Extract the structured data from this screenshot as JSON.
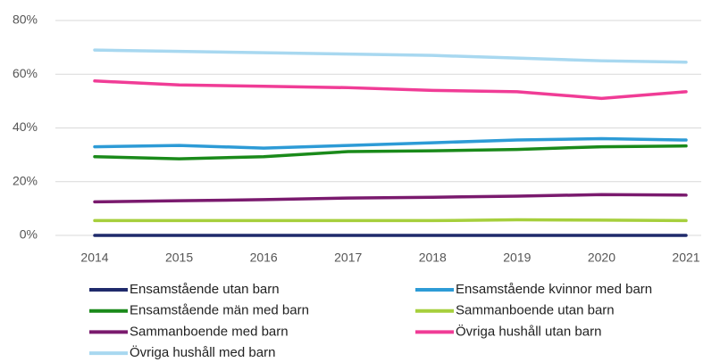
{
  "chart_data": {
    "type": "line",
    "categories": [
      "2014",
      "2015",
      "2016",
      "2017",
      "2018",
      "2019",
      "2020",
      "2021"
    ],
    "ylim": [
      0,
      80
    ],
    "yticks": [
      {
        "value": 0,
        "label": "0%"
      },
      {
        "value": 20,
        "label": "20%"
      },
      {
        "value": 40,
        "label": "40%"
      },
      {
        "value": 60,
        "label": "60%"
      },
      {
        "value": 80,
        "label": "80%"
      }
    ],
    "grid": true,
    "legend": "bottom",
    "series": [
      {
        "name": "Ensamstående utan barn",
        "color": "#1f2a6b",
        "values": [
          0,
          0,
          0,
          0,
          0,
          0,
          0,
          0
        ]
      },
      {
        "name": "Ensamstående kvinnor med barn",
        "color": "#2d9bd6",
        "values": [
          33,
          33.5,
          32.5,
          33.5,
          34.5,
          35.5,
          36,
          35.5
        ]
      },
      {
        "name": "Ensamstående män med barn",
        "color": "#1a8a1a",
        "values": [
          29.3,
          28.5,
          29.3,
          31.2,
          31.5,
          32,
          33,
          33.3
        ]
      },
      {
        "name": "Sammanboende utan barn",
        "color": "#a6cf3c",
        "values": [
          5.5,
          5.5,
          5.5,
          5.5,
          5.5,
          5.8,
          5.7,
          5.5
        ]
      },
      {
        "name": "Sammanboende med barn",
        "color": "#7a1a6e",
        "values": [
          12.5,
          12.9,
          13.3,
          13.9,
          14.2,
          14.6,
          15.2,
          15
        ]
      },
      {
        "name": "Övriga hushåll utan barn",
        "color": "#f03c96",
        "values": [
          57.5,
          56,
          55.5,
          55,
          54,
          53.5,
          51,
          53.5
        ]
      },
      {
        "name": "Övriga hushåll med barn",
        "color": "#a8d8f0",
        "values": [
          69,
          68.5,
          68,
          67.5,
          67,
          66,
          65,
          64.5
        ]
      }
    ]
  }
}
